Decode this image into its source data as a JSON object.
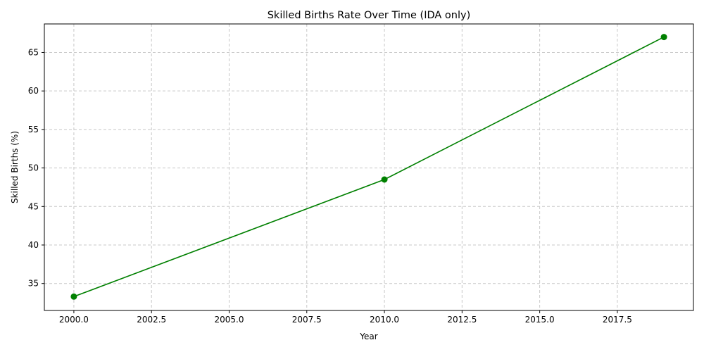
{
  "chart_data": {
    "type": "line",
    "title": "Skilled Births Rate Over Time (IDA only)",
    "xlabel": "Year",
    "ylabel": "Skilled Births (%)",
    "x": [
      2000,
      2010,
      2019
    ],
    "series": [
      {
        "values": [
          33.3,
          48.5,
          67.0
        ],
        "color": "#008000",
        "marker": "circle"
      }
    ],
    "xlim": [
      1999.05,
      2019.95
    ],
    "ylim": [
      31.5,
      68.7
    ],
    "xticks": [
      2000,
      2002.5,
      2005,
      2007.5,
      2010,
      2012.5,
      2015,
      2017.5
    ],
    "xtick_labels": [
      "2000.0",
      "2002.5",
      "2005.0",
      "2007.5",
      "2010.0",
      "2012.5",
      "2015.0",
      "2017.5"
    ],
    "yticks": [
      35,
      40,
      45,
      50,
      55,
      60,
      65
    ],
    "ytick_labels": [
      "35",
      "40",
      "45",
      "50",
      "55",
      "60",
      "65"
    ],
    "grid": true,
    "grid_style": "dashed",
    "grid_color": "#c8c8c8",
    "legend": "none"
  }
}
